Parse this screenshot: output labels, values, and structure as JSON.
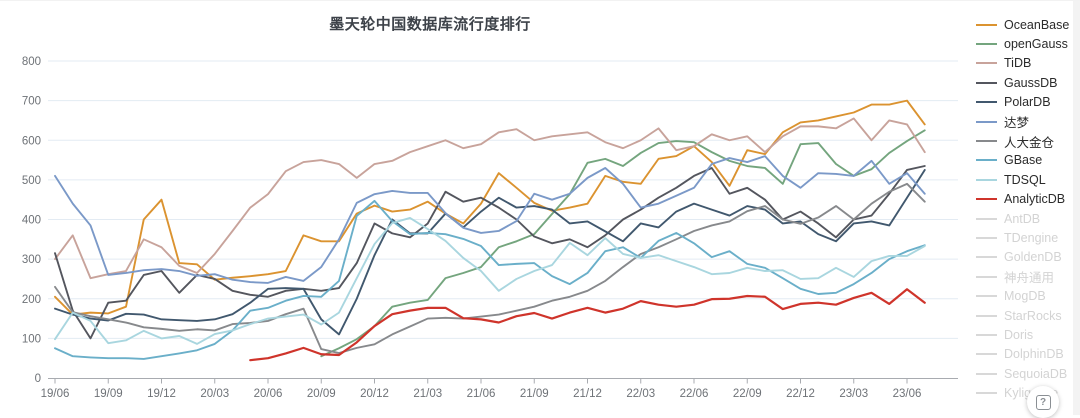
{
  "title": "墨天轮中国数据库流行度排行",
  "help_button": {
    "icon": "?"
  },
  "colors": {
    "grid": "#e3ebf3",
    "axis": "#a8abb0",
    "tick_text": "#6e7277",
    "disabled_legend": "#d8d8d8"
  },
  "chart_data": {
    "type": "line",
    "title": "墨天轮中国数据库流行度排行",
    "ylim": [
      0,
      800
    ],
    "y_ticks": [
      0,
      100,
      200,
      300,
      400,
      500,
      600,
      700,
      800
    ],
    "x_tick_labels": [
      "19/06",
      "19/09",
      "19/12",
      "20/03",
      "20/06",
      "20/09",
      "20/12",
      "21/03",
      "21/06",
      "21/09",
      "21/12",
      "22/03",
      "22/06",
      "22/09",
      "22/12",
      "23/03",
      "23/06"
    ],
    "months": [
      "19/06",
      "19/07",
      "19/08",
      "19/09",
      "19/10",
      "19/11",
      "19/12",
      "20/01",
      "20/02",
      "20/03",
      "20/04",
      "20/05",
      "20/06",
      "20/07",
      "20/08",
      "20/09",
      "20/10",
      "20/11",
      "20/12",
      "21/01",
      "21/02",
      "21/03",
      "21/04",
      "21/05",
      "21/06",
      "21/07",
      "21/08",
      "21/09",
      "21/10",
      "21/11",
      "21/12",
      "22/01",
      "22/02",
      "22/03",
      "22/04",
      "22/05",
      "22/06",
      "22/07",
      "22/08",
      "22/09",
      "22/10",
      "22/11",
      "22/12",
      "23/01",
      "23/02",
      "23/03",
      "23/04",
      "23/05",
      "23/06",
      "23/07"
    ],
    "legend_position": "right",
    "series": [
      {
        "name": "OceanBase",
        "color": "#db9330",
        "enabled": true,
        "values": [
          205,
          160,
          165,
          163,
          180,
          400,
          450,
          290,
          287,
          248,
          253,
          257,
          262,
          270,
          360,
          345,
          345,
          415,
          435,
          420,
          425,
          445,
          415,
          390,
          440,
          517,
          480,
          442,
          422,
          430,
          440,
          510,
          495,
          490,
          553,
          560,
          585,
          545,
          485,
          575,
          565,
          620,
          645,
          650,
          660,
          670,
          690,
          690,
          700,
          640
        ]
      },
      {
        "name": "openGauss",
        "color": "#74a57e",
        "enabled": true,
        "values": [
          null,
          null,
          null,
          null,
          null,
          null,
          null,
          null,
          null,
          null,
          null,
          null,
          null,
          null,
          null,
          55,
          75,
          98,
          131,
          180,
          190,
          197,
          252,
          265,
          280,
          330,
          345,
          363,
          414,
          464,
          543,
          553,
          535,
          568,
          593,
          598,
          595,
          570,
          548,
          535,
          530,
          490,
          590,
          593,
          540,
          510,
          527,
          568,
          598,
          625
        ]
      },
      {
        "name": "TiDB",
        "color": "#c8a39b",
        "enabled": true,
        "values": [
          300,
          360,
          252,
          262,
          270,
          350,
          330,
          283,
          265,
          313,
          371,
          430,
          464,
          522,
          545,
          550,
          540,
          505,
          540,
          548,
          570,
          585,
          600,
          580,
          590,
          620,
          628,
          600,
          610,
          615,
          620,
          595,
          580,
          600,
          630,
          575,
          585,
          615,
          600,
          610,
          570,
          610,
          635,
          635,
          630,
          655,
          600,
          650,
          640,
          570
        ]
      },
      {
        "name": "GaussDB",
        "color": "#54565e",
        "enabled": true,
        "values": [
          315,
          170,
          100,
          190,
          195,
          260,
          270,
          215,
          260,
          250,
          220,
          210,
          205,
          220,
          225,
          220,
          227,
          290,
          390,
          365,
          355,
          390,
          470,
          445,
          455,
          430,
          400,
          357,
          340,
          350,
          330,
          360,
          400,
          425,
          455,
          480,
          510,
          530,
          465,
          480,
          450,
          400,
          420,
          390,
          355,
          400,
          410,
          465,
          525,
          535
        ]
      },
      {
        "name": "PolarDB",
        "color": "#41586e",
        "enabled": true,
        "values": [
          175,
          160,
          150,
          145,
          162,
          160,
          148,
          146,
          144,
          148,
          161,
          190,
          225,
          227,
          225,
          148,
          110,
          200,
          310,
          400,
          365,
          365,
          415,
          380,
          420,
          455,
          430,
          434,
          425,
          390,
          395,
          370,
          345,
          390,
          380,
          420,
          440,
          425,
          410,
          434,
          425,
          390,
          395,
          363,
          345,
          390,
          395,
          385,
          455,
          525
        ]
      },
      {
        "name": "达梦",
        "color": "#7b99c8",
        "enabled": true,
        "values": [
          510,
          440,
          385,
          260,
          265,
          272,
          275,
          270,
          258,
          262,
          248,
          242,
          240,
          255,
          245,
          280,
          350,
          442,
          464,
          472,
          467,
          467,
          416,
          379,
          366,
          371,
          396,
          465,
          450,
          465,
          505,
          530,
          490,
          430,
          440,
          460,
          480,
          540,
          555,
          545,
          560,
          510,
          480,
          517,
          515,
          510,
          548,
          490,
          517,
          465
        ]
      },
      {
        "name": "人大金仓",
        "color": "#87898c",
        "enabled": true,
        "values": [
          230,
          166,
          156,
          148,
          140,
          128,
          124,
          119,
          123,
          120,
          136,
          139,
          144,
          161,
          175,
          73,
          63,
          76,
          85,
          110,
          130,
          150,
          152,
          150,
          155,
          160,
          170,
          180,
          195,
          205,
          220,
          245,
          280,
          313,
          330,
          350,
          371,
          385,
          395,
          421,
          434,
          400,
          389,
          405,
          434,
          400,
          440,
          470,
          490,
          445
        ]
      },
      {
        "name": "GBase",
        "color": "#6aafc9",
        "enabled": true,
        "values": [
          75,
          55,
          52,
          50,
          50,
          48,
          55,
          62,
          70,
          86,
          120,
          170,
          177,
          195,
          207,
          205,
          245,
          409,
          447,
          396,
          363,
          366,
          363,
          351,
          333,
          285,
          288,
          290,
          257,
          237,
          265,
          320,
          330,
          303,
          346,
          366,
          340,
          305,
          320,
          288,
          278,
          252,
          225,
          212,
          215,
          237,
          265,
          300,
          320,
          335
        ]
      },
      {
        "name": "TDSQL",
        "color": "#a9d6df",
        "enabled": true,
        "values": [
          98,
          165,
          144,
          88,
          95,
          119,
          100,
          106,
          86,
          111,
          120,
          136,
          150,
          155,
          160,
          135,
          165,
          252,
          338,
          391,
          404,
          376,
          346,
          303,
          270,
          220,
          250,
          270,
          285,
          341,
          310,
          353,
          313,
          303,
          310,
          295,
          280,
          262,
          265,
          278,
          270,
          272,
          250,
          252,
          278,
          255,
          295,
          308,
          308,
          333
        ]
      },
      {
        "name": "AnalyticDB",
        "color": "#cf342b",
        "enabled": true,
        "values": [
          null,
          null,
          null,
          null,
          null,
          null,
          null,
          null,
          null,
          null,
          null,
          45,
          50,
          62,
          76,
          60,
          58,
          90,
          131,
          161,
          170,
          177,
          177,
          151,
          148,
          140,
          156,
          164,
          150,
          165,
          177,
          165,
          175,
          194,
          185,
          180,
          185,
          199,
          200,
          207,
          205,
          174,
          187,
          190,
          185,
          202,
          215,
          187,
          224,
          190
        ]
      },
      {
        "name": "AntDB",
        "color": "#d8d8d8",
        "enabled": false,
        "values": null
      },
      {
        "name": "TDengine",
        "color": "#d8d8d8",
        "enabled": false,
        "values": null
      },
      {
        "name": "GoldenDB",
        "color": "#d8d8d8",
        "enabled": false,
        "values": null
      },
      {
        "name": "神舟通用",
        "color": "#d8d8d8",
        "enabled": false,
        "values": null
      },
      {
        "name": "MogDB",
        "color": "#d8d8d8",
        "enabled": false,
        "values": null
      },
      {
        "name": "StarRocks",
        "color": "#d8d8d8",
        "enabled": false,
        "values": null
      },
      {
        "name": "Doris",
        "color": "#d8d8d8",
        "enabled": false,
        "values": null
      },
      {
        "name": "DolphinDB",
        "color": "#d8d8d8",
        "enabled": false,
        "values": null
      },
      {
        "name": "SequoiaDB",
        "color": "#d8d8d8",
        "enabled": false,
        "values": null
      },
      {
        "name": "Kyligence",
        "color": "#d8d8d8",
        "enabled": false,
        "values": null
      }
    ]
  }
}
